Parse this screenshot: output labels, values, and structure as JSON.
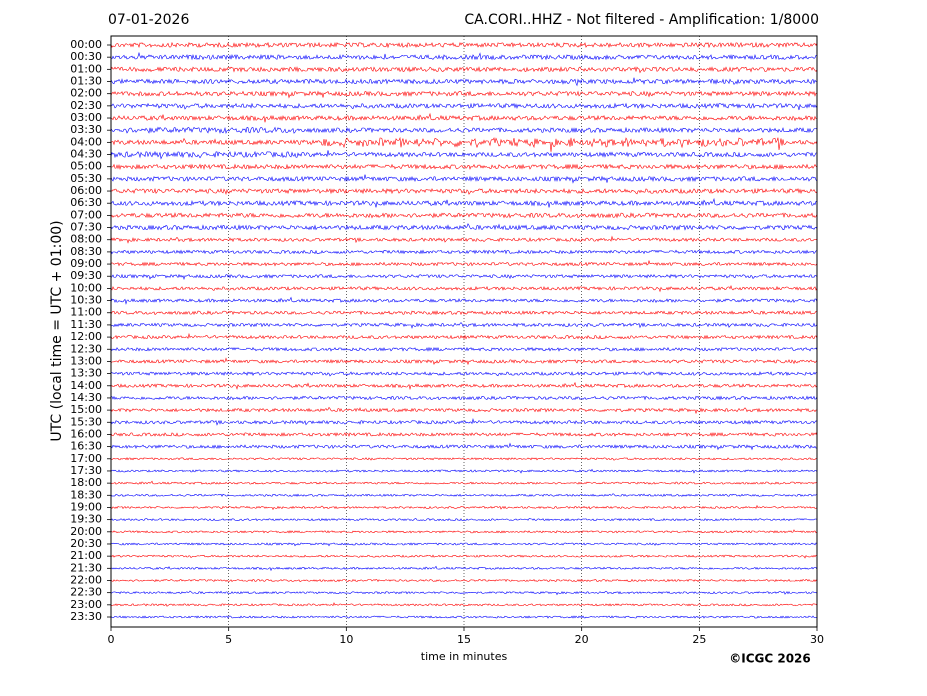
{
  "chart_data": {
    "type": "helicorder",
    "title_left": "07-01-2026",
    "title": "CA.CORI..HHZ - Not filtered - Amplification: 1/8000",
    "ylabel": "UTC (local time = UTC + 01:00)",
    "xlabel": "time in minutes",
    "credit": "©ICGC 2026",
    "categories": [
      "00:00",
      "00:30",
      "01:00",
      "01:30",
      "02:00",
      "02:30",
      "03:00",
      "03:30",
      "04:00",
      "04:30",
      "05:00",
      "05:30",
      "06:00",
      "06:30",
      "07:00",
      "07:30",
      "08:00",
      "08:30",
      "09:00",
      "09:30",
      "10:00",
      "10:30",
      "11:00",
      "11:30",
      "12:00",
      "12:30",
      "13:00",
      "13:30",
      "14:00",
      "14:30",
      "15:00",
      "15:30",
      "16:00",
      "16:30",
      "17:00",
      "17:30",
      "18:00",
      "18:30",
      "19:00",
      "19:30",
      "20:00",
      "20:30",
      "21:00",
      "21:30",
      "22:00",
      "22:30",
      "23:00",
      "23:30"
    ],
    "colors": [
      "#ff0000",
      "#0000ff"
    ],
    "xlim": [
      0,
      30
    ],
    "xticks": [
      0,
      5,
      10,
      15,
      20,
      25,
      30
    ],
    "grid": true
  }
}
